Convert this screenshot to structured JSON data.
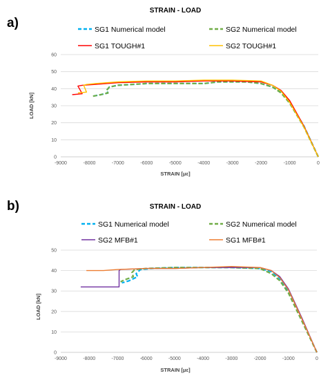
{
  "chart_data": [
    {
      "panel_label": "a)",
      "type": "line",
      "title": "STRAIN - LOAD",
      "xlabel": "STRAIN [με]",
      "ylabel": "LOAD [kN]",
      "xlim": [
        -9000,
        0
      ],
      "ylim": [
        0,
        60
      ],
      "x_ticks": [
        "-9000",
        "-8000",
        "-7000",
        "-6000",
        "-5000",
        "-4000",
        "-3000",
        "-2000",
        "-1000",
        "0"
      ],
      "y_ticks": [
        "0",
        "10",
        "20",
        "30",
        "40",
        "50",
        "60"
      ],
      "grid": "horizontal",
      "legend_position": "top",
      "series": [
        {
          "name": "SG1 Numerical model",
          "color": "#00B0F0",
          "dashed": true,
          "x": [
            0,
            -500,
            -1000,
            -1300,
            -1600,
            -2000,
            -2500,
            -3000,
            -3500,
            -4000,
            -5000,
            -6000,
            -6500,
            -7000,
            -7300,
            -7400,
            -7350,
            -7600,
            -7900
          ],
          "y": [
            0,
            18,
            32,
            38,
            41,
            43,
            44,
            44,
            44,
            43,
            43,
            43,
            42.5,
            42,
            41,
            39,
            37.5,
            36.5,
            35.5
          ]
        },
        {
          "name": "SG2 Numerical model",
          "color": "#70AD47",
          "dashed": true,
          "x": [
            0,
            -500,
            -1000,
            -1300,
            -1600,
            -2000,
            -2500,
            -3000,
            -3500,
            -4000,
            -5000,
            -6000,
            -6500,
            -7000,
            -7300,
            -7400,
            -7350,
            -7600,
            -7900
          ],
          "y": [
            0,
            17.5,
            31.5,
            37.5,
            41,
            43,
            44,
            44,
            44,
            43,
            43,
            43,
            42.5,
            42,
            41,
            39,
            37.5,
            36.5,
            35.5
          ]
        },
        {
          "name": "SG1 TOUGH#1",
          "color": "#FF0000",
          "dashed": false,
          "x": [
            0,
            -500,
            -1000,
            -1300,
            -1600,
            -2000,
            -3000,
            -4000,
            -5000,
            -6000,
            -7000,
            -7800,
            -8250,
            -8400,
            -8250,
            -8600
          ],
          "y": [
            0,
            18,
            33,
            39,
            42,
            44,
            44.5,
            44.5,
            44,
            44,
            43.5,
            42.5,
            42,
            41.5,
            37,
            36.5
          ]
        },
        {
          "name": "SG2 TOUGH#1",
          "color": "#FFC000",
          "dashed": false,
          "x": [
            0,
            -500,
            -1000,
            -1300,
            -1600,
            -2000,
            -3000,
            -4000,
            -5000,
            -6000,
            -7000,
            -7800,
            -8100,
            -8200,
            -8100,
            -8400
          ],
          "y": [
            0,
            17.5,
            32,
            38.5,
            42,
            44.5,
            45,
            45,
            44.5,
            44.5,
            44,
            43,
            42.5,
            42,
            38,
            37.5
          ]
        }
      ]
    },
    {
      "panel_label": "b)",
      "type": "line",
      "title": "STRAIN - LOAD",
      "xlabel": "STRAIN [με]",
      "ylabel": "LOAD [kN]",
      "xlim": [
        -9000,
        0
      ],
      "ylim": [
        0,
        50
      ],
      "x_ticks": [
        "-9000",
        "-8000",
        "-7000",
        "-6000",
        "-5000",
        "-4000",
        "-3000",
        "-2000",
        "-1000",
        "0"
      ],
      "y_ticks": [
        "0",
        "10",
        "20",
        "30",
        "40",
        "50"
      ],
      "grid": "horizontal",
      "legend_position": "top",
      "series": [
        {
          "name": "SG1 Numerical model",
          "color": "#00B0F0",
          "dashed": true,
          "x": [
            0,
            -500,
            -1000,
            -1300,
            -1600,
            -2000,
            -3000,
            -4000,
            -5000,
            -5800,
            -6200,
            -6350,
            -6300,
            -6600,
            -6850
          ],
          "y": [
            0,
            15,
            30,
            36,
            39.5,
            41,
            41.5,
            41.5,
            41.5,
            41,
            40.5,
            38.5,
            37,
            35,
            34
          ]
        },
        {
          "name": "SG2 Numerical model",
          "color": "#70AD47",
          "dashed": true,
          "x": [
            0,
            -500,
            -1000,
            -1300,
            -1600,
            -2000,
            -3000,
            -4000,
            -5000,
            -6000,
            -6400,
            -6500,
            -6450,
            -6750,
            -6900
          ],
          "y": [
            0,
            14.5,
            29,
            35,
            38.5,
            41,
            41.5,
            41.5,
            41.5,
            41,
            40.5,
            39,
            37,
            35.5,
            34.5
          ]
        },
        {
          "name": "SG2 MFB#1",
          "color": "#7030A0",
          "dashed": false,
          "x": [
            0,
            -500,
            -1000,
            -1300,
            -1600,
            -2000,
            -3000,
            -4000,
            -5000,
            -6000,
            -6900,
            -6950,
            -6950,
            -8300
          ],
          "y": [
            0,
            16,
            31,
            37,
            40,
            41.5,
            41.5,
            41.5,
            41,
            41,
            40.5,
            40,
            32,
            32
          ]
        },
        {
          "name": "SG1 MFB#1",
          "color": "#ED7D31",
          "dashed": false,
          "x": [
            0,
            -500,
            -1000,
            -1300,
            -1600,
            -2000,
            -3000,
            -4000,
            -5000,
            -6000,
            -7000,
            -7500,
            -8100
          ],
          "y": [
            0,
            15.5,
            30.5,
            36.5,
            40,
            41.5,
            42,
            41.5,
            41,
            41,
            40.5,
            40,
            40
          ]
        }
      ]
    }
  ]
}
